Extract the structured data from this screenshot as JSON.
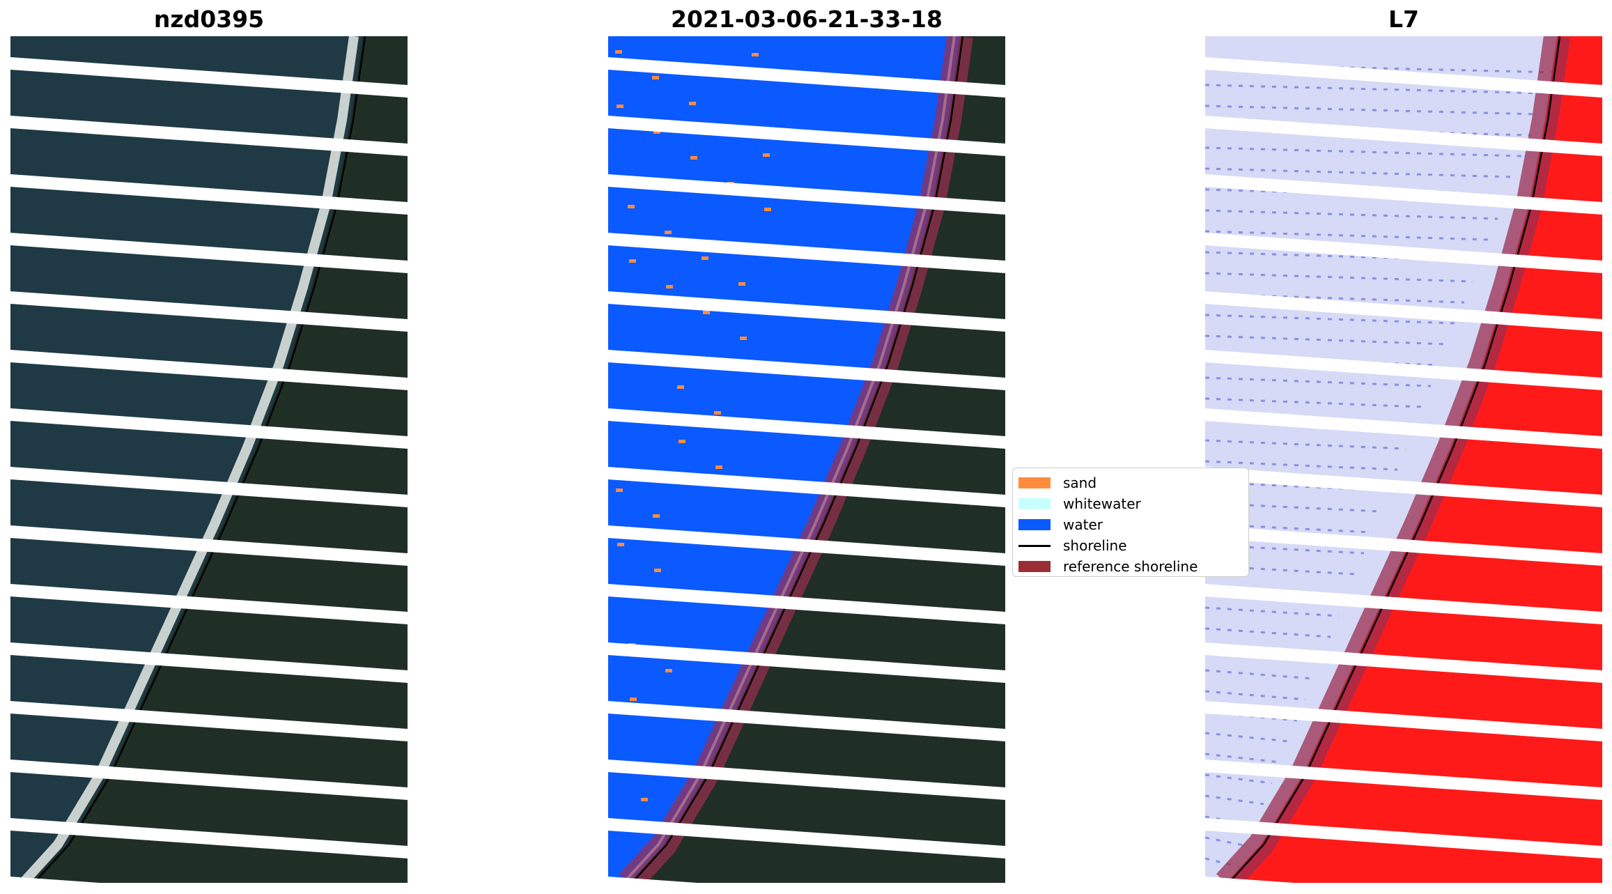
{
  "panels": [
    {
      "title": "nzd0395"
    },
    {
      "title": "2021-03-06-21-33-18"
    },
    {
      "title": "L7"
    }
  ],
  "legend": {
    "items": [
      {
        "label": "sand",
        "color": "#ff8c3c",
        "kind": "patch"
      },
      {
        "label": "whitewater",
        "color": "#c8ffff",
        "kind": "patch"
      },
      {
        "label": "water",
        "color": "#0a5aff",
        "kind": "patch"
      },
      {
        "label": "shoreline",
        "color": "#000000",
        "kind": "line"
      },
      {
        "label": "reference shoreline",
        "color": "#9b2d37",
        "kind": "patch"
      }
    ]
  },
  "colors": {
    "ocean": "#1f3a44",
    "land": "#1f2f26",
    "surf": "#e8ece8",
    "gap": "#ffffff",
    "water_class": "#0a5aff",
    "index_sea": "#d6daf6",
    "index_land": "#ff1a1a",
    "reference_band": "#9b2d50"
  }
}
